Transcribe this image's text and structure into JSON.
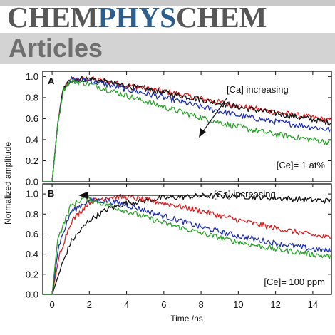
{
  "banner": {
    "journal_part1": "CHEM",
    "journal_part2": "PHYS",
    "journal_part3": "CHEM",
    "section": "Articles",
    "colors": {
      "chem": "#575757",
      "phys": "#2e5f8c",
      "section": "#6f6f6f",
      "bar": "#d3d3d3"
    }
  },
  "chart_data": {
    "type": "line",
    "xlabel": "Time /ns",
    "ylabel": "Normalized amplitude",
    "xlim": [
      -0.5,
      15
    ],
    "xticks": [
      0,
      2,
      4,
      6,
      8,
      10,
      12,
      14
    ],
    "panels": [
      {
        "id": "A",
        "label": "A",
        "ylim": [
          0,
          1.05
        ],
        "yticks": [
          0.0,
          0.2,
          0.4,
          0.6,
          0.8,
          1.0
        ],
        "ytick_labels": [
          "0.0",
          "0.2",
          "0.4",
          "0.6",
          "0.8",
          "1.0"
        ],
        "annotation": "[Ca] increasing",
        "condition": "[Ce]= 1 at%",
        "series": [
          {
            "color": "#d62020",
            "x": [
              0,
              0.3,
              0.6,
              1,
              2,
              4,
              6,
              8,
              10,
              12,
              14,
              15
            ],
            "y": [
              0,
              0.55,
              0.88,
              0.97,
              0.98,
              0.92,
              0.86,
              0.79,
              0.72,
              0.66,
              0.61,
              0.58
            ]
          },
          {
            "color": "#111111",
            "x": [
              0,
              0.3,
              0.6,
              1,
              2,
              4,
              6,
              8,
              10,
              12,
              14,
              15
            ],
            "y": [
              0,
              0.55,
              0.88,
              0.97,
              0.98,
              0.91,
              0.85,
              0.78,
              0.71,
              0.65,
              0.59,
              0.56
            ]
          },
          {
            "color": "#1f2fa8",
            "x": [
              0,
              0.3,
              0.6,
              1,
              2,
              4,
              6,
              8,
              10,
              12,
              14,
              15
            ],
            "y": [
              0,
              0.55,
              0.88,
              0.97,
              0.96,
              0.88,
              0.8,
              0.71,
              0.63,
              0.57,
              0.52,
              0.49
            ]
          },
          {
            "color": "#2aa02a",
            "x": [
              0,
              0.3,
              0.6,
              1,
              2,
              4,
              6,
              8,
              10,
              12,
              14,
              15
            ],
            "y": [
              0,
              0.55,
              0.88,
              0.96,
              0.93,
              0.82,
              0.71,
              0.61,
              0.52,
              0.45,
              0.4,
              0.37
            ]
          }
        ]
      },
      {
        "id": "B",
        "label": "B",
        "ylim": [
          0,
          1.1
        ],
        "yticks": [
          0.0,
          0.2,
          0.4,
          0.6,
          0.8,
          1.0
        ],
        "ytick_labels": [
          "0.0",
          "0.2",
          "0.4",
          "0.6",
          "0.8",
          "1.0"
        ],
        "annotation": "[Ca] increasing",
        "condition": "[Ce]= 100 ppm",
        "series": [
          {
            "color": "#111111",
            "x": [
              0,
              0.5,
              1,
              2,
              3,
              4,
              6,
              8,
              10,
              12,
              14,
              15
            ],
            "y": [
              0,
              0.28,
              0.52,
              0.74,
              0.85,
              0.91,
              0.96,
              0.98,
              0.98,
              0.96,
              0.94,
              0.93
            ]
          },
          {
            "color": "#d62020",
            "x": [
              0,
              0.4,
              1,
              2,
              3,
              4,
              6,
              8,
              10,
              12,
              14,
              15
            ],
            "y": [
              0,
              0.4,
              0.72,
              0.92,
              0.97,
              0.97,
              0.91,
              0.83,
              0.74,
              0.66,
              0.59,
              0.56
            ]
          },
          {
            "color": "#1f2fa8",
            "x": [
              0,
              0.35,
              1,
              2,
              3,
              4,
              6,
              8,
              10,
              12,
              14,
              15
            ],
            "y": [
              0,
              0.48,
              0.82,
              0.94,
              0.93,
              0.89,
              0.78,
              0.67,
              0.58,
              0.51,
              0.45,
              0.43
            ]
          },
          {
            "color": "#2aa02a",
            "x": [
              0,
              0.3,
              1,
              1.7,
              2.5,
              4,
              6,
              8,
              10,
              12,
              14,
              15
            ],
            "y": [
              0,
              0.55,
              0.88,
              0.96,
              0.92,
              0.83,
              0.71,
              0.61,
              0.52,
              0.45,
              0.4,
              0.37
            ]
          }
        ]
      }
    ]
  }
}
